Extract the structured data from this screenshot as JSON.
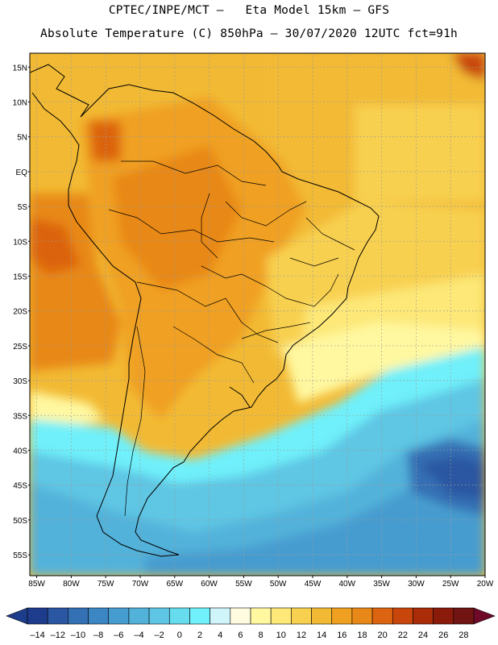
{
  "header": {
    "line1": "CPTEC/INPE/MCT –   Eta Model 15km – GFS",
    "line2": "Absolute Temperature (C) 850hPa – 30/07/2020 12UTC fct=91h"
  },
  "map": {
    "lon_range": [
      -86,
      -20
    ],
    "lat_range": [
      -58,
      17
    ],
    "lat_labels": [
      "15N",
      "10N",
      "5N",
      "EQ",
      "5S",
      "10S",
      "15S",
      "20S",
      "25S",
      "30S",
      "35S",
      "40S",
      "45S",
      "50S",
      "55S"
    ],
    "lat_values": [
      15,
      10,
      5,
      0,
      -5,
      -10,
      -15,
      -20,
      -25,
      -30,
      -35,
      -40,
      -45,
      -50,
      -55
    ],
    "lon_labels": [
      "85W",
      "80W",
      "75W",
      "70W",
      "65W",
      "60W",
      "55W",
      "50W",
      "45W",
      "40W",
      "35W",
      "30W",
      "25W",
      "20W"
    ],
    "lon_values": [
      -85,
      -80,
      -75,
      -70,
      -65,
      -60,
      -55,
      -50,
      -45,
      -40,
      -35,
      -30,
      -25,
      -20
    ],
    "grid": "dotted"
  },
  "colorbar": {
    "labels": [
      "-14",
      "-12",
      "-10",
      "-8",
      "-6",
      "-4",
      "-2",
      "0",
      "2",
      "4",
      "6",
      "8",
      "10",
      "12",
      "14",
      "16",
      "18",
      "20",
      "22",
      "24",
      "26",
      "28"
    ],
    "colors": [
      "#1e3c8c",
      "#2a56a2",
      "#3470b4",
      "#3c86c3",
      "#469ccf",
      "#52b2da",
      "#5ec6e4",
      "#66dcee",
      "#70f0fa",
      "#cff4fa",
      "#fffbe0",
      "#fff8a0",
      "#fde878",
      "#f8d050",
      "#f2ba34",
      "#f0a020",
      "#e88818",
      "#dc6410",
      "#c8460c",
      "#aa2c08",
      "#8a1a0a",
      "#701414"
    ],
    "low_arrow": "#1e3c8c",
    "high_arrow": "#6e0a28"
  }
}
